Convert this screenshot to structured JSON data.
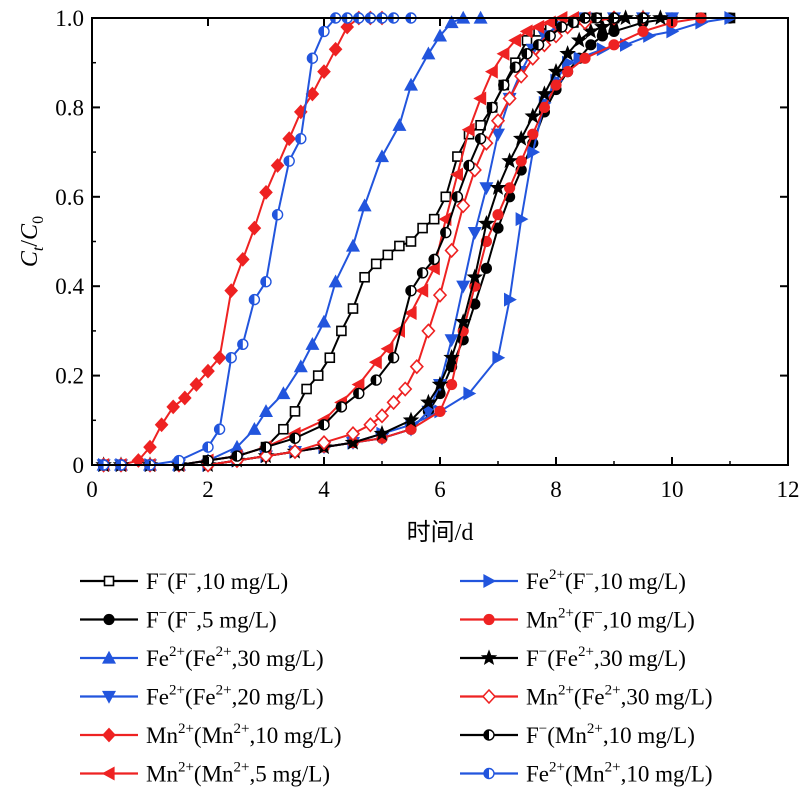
{
  "chart_data": {
    "type": "line",
    "xlabel": "时间/d",
    "ylabel": {
      "main": "C",
      "sub1": "t",
      "slash": "/",
      "main2": "C",
      "sub2": "0"
    },
    "xlim": [
      0,
      12
    ],
    "ylim": [
      0,
      1.0
    ],
    "xticks": [
      "0",
      "2",
      "4",
      "6",
      "8",
      "10",
      "12"
    ],
    "xtick_values": [
      0,
      2,
      4,
      6,
      8,
      10,
      12
    ],
    "yticks": [
      "0",
      "0.2",
      "0.4",
      "0.6",
      "0.8",
      "1.0"
    ],
    "ytick_values": [
      0,
      0.2,
      0.4,
      0.6,
      0.8,
      1.0
    ],
    "grid": false,
    "legend_placement": "below",
    "series": [
      {
        "id": "s1",
        "name": {
          "base": "F",
          "sup": "−",
          "rest": "(F",
          "sup2": "−",
          "rest2": ",10 mg/L)"
        },
        "color": "#000000",
        "marker": "square-open",
        "x": [
          0.2,
          0.5,
          1.0,
          1.5,
          2.0,
          2.5,
          3.0,
          3.3,
          3.5,
          3.7,
          3.9,
          4.1,
          4.3,
          4.5,
          4.7,
          4.9,
          5.1,
          5.3,
          5.5,
          5.7,
          5.9,
          6.1,
          6.3,
          6.5,
          6.7,
          6.9,
          7.1,
          7.3,
          7.5,
          7.7,
          7.9,
          8.1,
          8.3,
          8.5,
          8.7,
          9.0,
          9.5,
          10.0,
          10.5,
          11.0
        ],
        "y": [
          0,
          0,
          0,
          0,
          0.01,
          0.02,
          0.04,
          0.08,
          0.12,
          0.17,
          0.2,
          0.24,
          0.3,
          0.35,
          0.42,
          0.45,
          0.47,
          0.49,
          0.5,
          0.53,
          0.55,
          0.6,
          0.69,
          0.74,
          0.76,
          0.8,
          0.85,
          0.9,
          0.95,
          0.97,
          0.98,
          0.99,
          0.99,
          1.0,
          1.0,
          1.0,
          1.0,
          1.0,
          1.0,
          1.0
        ]
      },
      {
        "id": "s2",
        "name": {
          "base": "F",
          "sup": "−",
          "rest": "(F",
          "sup2": "−",
          "rest2": ",5 mg/L)"
        },
        "color": "#000000",
        "marker": "circle-filled",
        "x": [
          0.2,
          0.5,
          1.0,
          1.5,
          2.0,
          2.5,
          3.0,
          3.5,
          4.0,
          4.5,
          5.0,
          5.5,
          5.8,
          6.0,
          6.2,
          6.4,
          6.6,
          6.8,
          7.0,
          7.2,
          7.4,
          7.6,
          7.8,
          8.0,
          8.2,
          8.4,
          8.6,
          8.8,
          9.0,
          9.5,
          10.0,
          10.5,
          11.0
        ],
        "y": [
          0,
          0,
          0,
          0,
          0.0,
          0.01,
          0.02,
          0.03,
          0.04,
          0.05,
          0.06,
          0.08,
          0.12,
          0.16,
          0.22,
          0.28,
          0.36,
          0.44,
          0.53,
          0.6,
          0.66,
          0.72,
          0.79,
          0.84,
          0.88,
          0.91,
          0.94,
          0.96,
          0.97,
          0.99,
          1.0,
          1.0,
          1.0
        ]
      },
      {
        "id": "s3",
        "name": {
          "base": "Fe",
          "sup": "2+",
          "rest": "(Fe",
          "sup2": "2+",
          "rest2": ",30 mg/L)"
        },
        "color": "#2255dd",
        "marker": "triangle-up-filled",
        "x": [
          0.2,
          0.5,
          1.0,
          1.5,
          2.0,
          2.5,
          2.8,
          3.0,
          3.3,
          3.6,
          3.8,
          4.0,
          4.2,
          4.5,
          4.7,
          5.0,
          5.3,
          5.5,
          5.8,
          6.0,
          6.2,
          6.4,
          6.7
        ],
        "y": [
          0,
          0,
          0,
          0,
          0.01,
          0.04,
          0.08,
          0.12,
          0.16,
          0.22,
          0.27,
          0.32,
          0.41,
          0.49,
          0.58,
          0.69,
          0.76,
          0.85,
          0.92,
          0.96,
          0.99,
          1.0,
          1.0
        ]
      },
      {
        "id": "s4",
        "name": {
          "base": "Fe",
          "sup": "2+",
          "rest": "(Fe",
          "sup2": "2+",
          "rest2": ",20 mg/L)"
        },
        "color": "#2255dd",
        "marker": "triangle-down-filled",
        "x": [
          0.2,
          0.5,
          1.0,
          1.5,
          2.0,
          2.5,
          3.0,
          3.5,
          4.0,
          4.5,
          5.0,
          5.5,
          5.8,
          6.0,
          6.2,
          6.4,
          6.6,
          6.8,
          7.0,
          7.2,
          7.4,
          7.6,
          7.8,
          8.0,
          8.5,
          9.0,
          9.5,
          10.0
        ],
        "y": [
          0,
          0,
          0,
          0,
          0.0,
          0.01,
          0.02,
          0.03,
          0.04,
          0.05,
          0.06,
          0.08,
          0.12,
          0.18,
          0.28,
          0.4,
          0.52,
          0.62,
          0.74,
          0.82,
          0.88,
          0.93,
          0.96,
          0.98,
          1.0,
          1.0,
          1.0,
          1.0
        ]
      },
      {
        "id": "s5",
        "name": {
          "base": "Mn",
          "sup": "2+",
          "rest": "(Mn",
          "sup2": "2+",
          "rest2": ",10 mg/L)"
        },
        "color": "#ee2222",
        "marker": "diamond-filled",
        "x": [
          0.2,
          0.5,
          0.8,
          1.0,
          1.2,
          1.4,
          1.6,
          1.8,
          2.0,
          2.2,
          2.4,
          2.6,
          2.8,
          3.0,
          3.2,
          3.4,
          3.6,
          3.8,
          4.0,
          4.2,
          4.4,
          4.6,
          4.8,
          5.0
        ],
        "y": [
          0,
          0,
          0.01,
          0.04,
          0.09,
          0.13,
          0.15,
          0.18,
          0.21,
          0.24,
          0.39,
          0.46,
          0.53,
          0.61,
          0.67,
          0.73,
          0.79,
          0.83,
          0.88,
          0.93,
          0.98,
          1.0,
          1.0,
          1.0
        ]
      },
      {
        "id": "s6",
        "name": {
          "base": "Mn",
          "sup": "2+",
          "rest": "(Mn",
          "sup2": "2+",
          "rest2": ",5 mg/L)"
        },
        "color": "#ee2222",
        "marker": "triangle-left-filled",
        "x": [
          0.2,
          0.5,
          1.0,
          1.5,
          2.0,
          2.5,
          3.0,
          3.5,
          4.0,
          4.3,
          4.6,
          4.9,
          5.1,
          5.3,
          5.5,
          5.7,
          5.9,
          6.1,
          6.3,
          6.5,
          6.7,
          6.9,
          7.1,
          7.3,
          7.5,
          7.7,
          7.9,
          8.1,
          8.3,
          8.5
        ],
        "y": [
          0,
          0,
          0,
          0,
          0.01,
          0.02,
          0.04,
          0.07,
          0.1,
          0.14,
          0.18,
          0.23,
          0.26,
          0.3,
          0.34,
          0.39,
          0.44,
          0.55,
          0.65,
          0.75,
          0.82,
          0.88,
          0.92,
          0.95,
          0.97,
          0.98,
          0.99,
          1.0,
          1.0,
          1.0
        ]
      },
      {
        "id": "s7",
        "name": {
          "base": "Fe",
          "sup": "2+",
          "rest": "(F",
          "sup2": "−",
          "rest2": ",10 mg/L)"
        },
        "color": "#2255dd",
        "marker": "triangle-right-filled",
        "x": [
          0.2,
          0.5,
          1.0,
          1.5,
          2.0,
          2.5,
          3.0,
          3.5,
          4.0,
          4.5,
          5.0,
          5.5,
          6.0,
          6.5,
          7.0,
          7.2,
          7.4,
          7.6,
          7.8,
          8.0,
          8.2,
          8.4,
          8.8,
          9.2,
          9.6,
          10.0,
          10.5,
          11.0
        ],
        "y": [
          0,
          0,
          0,
          0,
          0.0,
          0.01,
          0.02,
          0.03,
          0.04,
          0.05,
          0.07,
          0.09,
          0.12,
          0.16,
          0.24,
          0.37,
          0.55,
          0.7,
          0.81,
          0.86,
          0.9,
          0.91,
          0.93,
          0.94,
          0.96,
          0.97,
          0.99,
          1.0
        ]
      },
      {
        "id": "s8",
        "name": {
          "base": "Mn",
          "sup": "2+",
          "rest": "(F",
          "sup2": "−",
          "rest2": ",10 mg/L)"
        },
        "color": "#ee2222",
        "marker": "circle-filled",
        "x": [
          0.2,
          0.5,
          1.0,
          1.5,
          2.0,
          2.5,
          3.0,
          3.5,
          4.0,
          4.5,
          5.0,
          5.5,
          6.0,
          6.2,
          6.4,
          6.6,
          6.8,
          7.0,
          7.2,
          7.4,
          7.6,
          7.8,
          8.0,
          8.2,
          8.5,
          9.0,
          9.5,
          10.0,
          10.5
        ],
        "y": [
          0,
          0,
          0,
          0,
          0.0,
          0.01,
          0.02,
          0.03,
          0.04,
          0.05,
          0.06,
          0.08,
          0.12,
          0.18,
          0.3,
          0.4,
          0.5,
          0.56,
          0.62,
          0.68,
          0.74,
          0.8,
          0.85,
          0.88,
          0.91,
          0.94,
          0.97,
          0.99,
          1.0
        ]
      },
      {
        "id": "s9",
        "name": {
          "base": "F",
          "sup": "−",
          "rest": "(Fe",
          "sup2": "2+",
          "rest2": ",30 mg/L)"
        },
        "color": "#000000",
        "marker": "star-filled",
        "x": [
          0.2,
          0.5,
          1.0,
          1.5,
          2.0,
          2.5,
          3.0,
          3.5,
          4.0,
          4.5,
          5.0,
          5.5,
          5.8,
          6.0,
          6.2,
          6.4,
          6.6,
          6.8,
          7.0,
          7.2,
          7.4,
          7.6,
          7.8,
          8.0,
          8.2,
          8.4,
          8.6,
          8.8,
          9.0,
          9.2,
          9.5,
          9.8
        ],
        "y": [
          0,
          0,
          0,
          0,
          0.0,
          0.01,
          0.02,
          0.03,
          0.04,
          0.05,
          0.07,
          0.1,
          0.14,
          0.18,
          0.24,
          0.32,
          0.42,
          0.54,
          0.62,
          0.68,
          0.73,
          0.78,
          0.83,
          0.88,
          0.92,
          0.95,
          0.97,
          0.98,
          0.99,
          1.0,
          1.0,
          1.0
        ]
      },
      {
        "id": "s10",
        "name": {
          "base": "Mn",
          "sup": "2+",
          "rest": "(Fe",
          "sup2": "2+",
          "rest2": ",30 mg/L)"
        },
        "color": "#ee2222",
        "marker": "diamond-open",
        "x": [
          0.2,
          0.5,
          1.0,
          1.5,
          2.0,
          2.5,
          3.0,
          3.5,
          4.0,
          4.5,
          4.8,
          5.0,
          5.2,
          5.4,
          5.6,
          5.8,
          6.0,
          6.2,
          6.4,
          6.6,
          6.8,
          7.0,
          7.2,
          7.4,
          7.6,
          7.8,
          8.0,
          8.2,
          8.5,
          9.0,
          9.5
        ],
        "y": [
          0,
          0,
          0,
          0,
          0.0,
          0.01,
          0.02,
          0.03,
          0.05,
          0.07,
          0.09,
          0.11,
          0.14,
          0.17,
          0.22,
          0.3,
          0.38,
          0.48,
          0.58,
          0.66,
          0.72,
          0.77,
          0.82,
          0.87,
          0.91,
          0.94,
          0.96,
          0.98,
          0.99,
          1.0,
          1.0
        ]
      },
      {
        "id": "s11",
        "name": {
          "base": "F",
          "sup": "−",
          "rest": "(Mn",
          "sup2": "2+",
          "rest2": ",10 mg/L)"
        },
        "color": "#000000",
        "marker": "circle-half",
        "x": [
          0.2,
          0.5,
          1.0,
          1.5,
          2.0,
          2.5,
          3.0,
          3.5,
          4.0,
          4.3,
          4.6,
          4.9,
          5.2,
          5.5,
          5.7,
          5.9,
          6.1,
          6.3,
          6.5,
          6.7,
          6.9,
          7.1,
          7.3,
          7.5,
          7.7,
          7.9,
          8.1,
          8.3,
          8.5,
          8.7,
          9.0,
          9.5
        ],
        "y": [
          0,
          0,
          0,
          0,
          0.01,
          0.02,
          0.04,
          0.06,
          0.09,
          0.13,
          0.16,
          0.19,
          0.24,
          0.39,
          0.43,
          0.46,
          0.52,
          0.6,
          0.67,
          0.73,
          0.8,
          0.85,
          0.89,
          0.92,
          0.94,
          0.96,
          0.98,
          0.99,
          1.0,
          1.0,
          1.0,
          1.0
        ]
      },
      {
        "id": "s12",
        "name": {
          "base": "Fe",
          "sup": "2+",
          "rest": "(Mn",
          "sup2": "2+",
          "rest2": ",10 mg/L)"
        },
        "color": "#2255dd",
        "marker": "circle-half",
        "x": [
          0.2,
          0.5,
          1.0,
          1.5,
          2.0,
          2.2,
          2.4,
          2.6,
          2.8,
          3.0,
          3.2,
          3.4,
          3.6,
          3.8,
          4.0,
          4.2,
          4.4,
          4.6,
          4.8,
          5.0,
          5.2,
          5.5
        ],
        "y": [
          0,
          0,
          0,
          0.01,
          0.04,
          0.08,
          0.24,
          0.27,
          0.37,
          0.41,
          0.56,
          0.68,
          0.73,
          0.91,
          0.97,
          1.0,
          1.0,
          1.0,
          1.0,
          1.0,
          1.0,
          1.0
        ]
      }
    ]
  }
}
